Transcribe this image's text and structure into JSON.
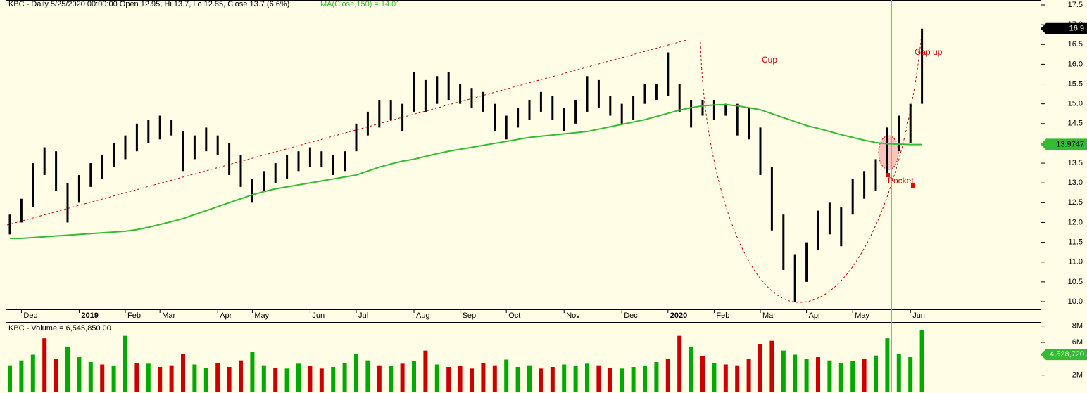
{
  "chart_data": {
    "type": "ohlc",
    "title": "KBC - Daily 5/25/2020 00:00:00 Open 12.95, Hi 13.7, Lo 12.85, Close 13.7 (6.6%)",
    "ma_title": "MA(Close,150) = 14.01",
    "volume_title": "KBC - Volume = 6,545,850.00",
    "categories": [
      null,
      "Dec",
      null,
      null,
      null,
      null,
      "2019",
      null,
      null,
      null,
      "Feb",
      null,
      null,
      "Mar",
      null,
      null,
      null,
      null,
      "Apr",
      null,
      null,
      "May",
      null,
      null,
      null,
      null,
      "Jun",
      null,
      null,
      null,
      "Jul",
      null,
      null,
      null,
      null,
      "Aug",
      null,
      null,
      null,
      "Sep",
      null,
      null,
      null,
      "Oct",
      null,
      null,
      null,
      null,
      "Nov",
      null,
      null,
      null,
      null,
      "Dec",
      null,
      null,
      null,
      "2020",
      null,
      null,
      null,
      "Feb",
      null,
      null,
      null,
      "Mar",
      null,
      null,
      null,
      "Apr",
      null,
      null,
      null,
      "May",
      null,
      null,
      null,
      null,
      "Jun",
      null
    ],
    "high": [
      12.2,
      12.6,
      13.5,
      13.9,
      13.8,
      13.0,
      13.2,
      13.5,
      13.7,
      14.0,
      14.2,
      14.5,
      14.6,
      14.7,
      14.6,
      14.3,
      14.2,
      14.4,
      14.2,
      14.0,
      13.7,
      13.1,
      13.3,
      13.5,
      13.7,
      13.8,
      13.9,
      13.8,
      13.7,
      13.8,
      14.5,
      14.8,
      15.1,
      15.1,
      15.0,
      15.8,
      15.6,
      15.7,
      15.8,
      15.5,
      15.4,
      15.3,
      15.0,
      14.7,
      14.9,
      15.1,
      15.3,
      15.2,
      14.9,
      15.1,
      15.7,
      15.6,
      15.2,
      15.0,
      15.2,
      15.5,
      15.5,
      16.3,
      15.5,
      15.1,
      15.1,
      15.1,
      15.0,
      15.0,
      14.9,
      14.4,
      13.4,
      12.2,
      11.2,
      11.5,
      12.3,
      12.5,
      12.4,
      13.1,
      13.3,
      13.6,
      14.4,
      14.7,
      15.0,
      16.9
    ],
    "low": [
      11.7,
      12.0,
      12.4,
      13.2,
      12.8,
      12.0,
      12.5,
      12.9,
      13.1,
      13.4,
      13.6,
      13.8,
      14.0,
      14.1,
      14.2,
      13.3,
      13.6,
      13.8,
      13.7,
      13.2,
      12.9,
      12.5,
      12.8,
      13.0,
      13.1,
      13.3,
      13.4,
      13.4,
      13.2,
      13.3,
      13.8,
      14.2,
      14.4,
      14.6,
      14.3,
      14.8,
      14.8,
      15.0,
      15.1,
      15.0,
      14.9,
      14.8,
      14.3,
      14.1,
      14.4,
      14.6,
      14.8,
      14.6,
      14.3,
      14.5,
      14.8,
      14.9,
      14.7,
      14.5,
      14.6,
      15.0,
      15.1,
      15.2,
      14.8,
      14.4,
      14.7,
      14.6,
      14.7,
      14.2,
      14.1,
      13.2,
      11.8,
      10.8,
      10.0,
      10.5,
      11.3,
      11.7,
      11.4,
      12.2,
      12.6,
      12.8,
      13.2,
      13.8,
      14.0,
      15.0
    ],
    "ma": {
      "name": "MA(Close,150)",
      "color": "#33bb33",
      "values": [
        11.6,
        11.6,
        11.62,
        11.64,
        11.66,
        11.68,
        11.7,
        11.72,
        11.74,
        11.76,
        11.78,
        11.82,
        11.88,
        11.95,
        12.02,
        12.1,
        12.2,
        12.3,
        12.4,
        12.5,
        12.6,
        12.7,
        12.78,
        12.85,
        12.9,
        12.95,
        13.0,
        13.05,
        13.1,
        13.15,
        13.2,
        13.3,
        13.4,
        13.48,
        13.55,
        13.6,
        13.67,
        13.74,
        13.8,
        13.85,
        13.9,
        13.95,
        14.0,
        14.05,
        14.1,
        14.15,
        14.18,
        14.21,
        14.24,
        14.27,
        14.3,
        14.36,
        14.42,
        14.48,
        14.54,
        14.6,
        14.68,
        14.76,
        14.84,
        14.9,
        14.95,
        14.97,
        14.98,
        14.95,
        14.9,
        14.85,
        14.75,
        14.65,
        14.55,
        14.45,
        14.38,
        14.3,
        14.22,
        14.15,
        14.08,
        14.02,
        13.99,
        13.98,
        13.97,
        13.97
      ]
    },
    "ylim": [
      10.0,
      17.5
    ],
    "yticks": [
      {
        "value": 10,
        "label": "10.0"
      },
      10.5,
      {
        "value": 11,
        "label": "11.0"
      },
      11.5,
      {
        "value": 12,
        "label": "12.0"
      },
      12.5,
      {
        "value": 13,
        "label": "13.0"
      },
      13.5,
      {
        "value": 14,
        "label": "14.0"
      },
      14.5,
      {
        "value": 15,
        "label": "15.0"
      },
      15.5,
      {
        "value": 16,
        "label": "16.0"
      },
      16.5,
      {
        "value": 17,
        "label": "17.0"
      },
      17.5
    ],
    "price_marker": {
      "value": 16.9,
      "label": "16.9"
    },
    "ma_marker": {
      "value": 13.9747,
      "label": "13.9747"
    },
    "volume": {
      "name": "Volume",
      "values": [
        3.2,
        3.8,
        4.5,
        6.5,
        4.0,
        5.5,
        4.2,
        3.6,
        3.3,
        3.1,
        6.8,
        3.5,
        3.4,
        3.0,
        3.2,
        4.6,
        3.3,
        2.9,
        3.5,
        3.0,
        3.8,
        4.8,
        3.2,
        2.9,
        2.8,
        3.4,
        3.1,
        2.8,
        3.0,
        3.5,
        4.6,
        3.8,
        3.2,
        3.1,
        3.4,
        3.7,
        5.0,
        3.3,
        3.0,
        3.1,
        2.8,
        3.5,
        3.2,
        3.9,
        3.0,
        3.2,
        2.8,
        3.0,
        3.3,
        3.1,
        3.4,
        3.2,
        2.9,
        2.8,
        3.0,
        3.1,
        3.6,
        4.0,
        6.8,
        5.5,
        4.3,
        3.5,
        3.3,
        3.2,
        4.0,
        5.8,
        6.2,
        5.0,
        4.5,
        4.0,
        4.2,
        3.8,
        3.5,
        3.7,
        4.0,
        4.4,
        6.5,
        4.6,
        4.2,
        7.5
      ],
      "colors": [
        "#00aa00",
        "#00aa00",
        "#00aa00",
        "#cc0000",
        "#cc0000",
        "#00aa00",
        "#00aa00",
        "#00aa00",
        "#cc0000",
        "#00aa00",
        "#00aa00",
        "#cc0000",
        "#00aa00",
        "#cc0000",
        "#cc0000",
        "#cc0000",
        "#00aa00",
        "#00aa00",
        "#cc0000",
        "#cc0000",
        "#cc0000",
        "#00aa00",
        "#00aa00",
        "#cc0000",
        "#00aa00",
        "#00aa00",
        "#cc0000",
        "#cc0000",
        "#00aa00",
        "#00aa00",
        "#00aa00",
        "#00aa00",
        "#cc0000",
        "#00aa00",
        "#cc0000",
        "#00aa00",
        "#cc0000",
        "#00aa00",
        "#cc0000",
        "#cc0000",
        "#cc0000",
        "#cc0000",
        "#cc0000",
        "#00aa00",
        "#00aa00",
        "#00aa00",
        "#cc0000",
        "#cc0000",
        "#00aa00",
        "#00aa00",
        "#00aa00",
        "#cc0000",
        "#cc0000",
        "#00aa00",
        "#00aa00",
        "#00aa00",
        "#00aa00",
        "#cc0000",
        "#cc0000",
        "#00aa00",
        "#cc0000",
        "#00aa00",
        "#cc0000",
        "#cc0000",
        "#cc0000",
        "#cc0000",
        "#cc0000",
        "#00aa00",
        "#00aa00",
        "#00aa00",
        "#cc0000",
        "#00aa00",
        "#00aa00",
        "#00aa00",
        "#cc0000",
        "#00aa00",
        "#00aa00",
        "#00aa00",
        "#00aa00",
        "#00aa00"
      ]
    },
    "vlim": [
      0,
      8.4
    ],
    "vticks": [
      {
        "value": 2,
        "label": "2M"
      },
      {
        "value": 6,
        "label": "6M"
      },
      {
        "value": 8,
        "label": "8M"
      }
    ],
    "volume_marker": {
      "value": 4.52872,
      "label": "4,528,720"
    },
    "annotations": {
      "cup": "Cup",
      "gap_up": "Gap up",
      "pocket": "Pocket"
    }
  }
}
